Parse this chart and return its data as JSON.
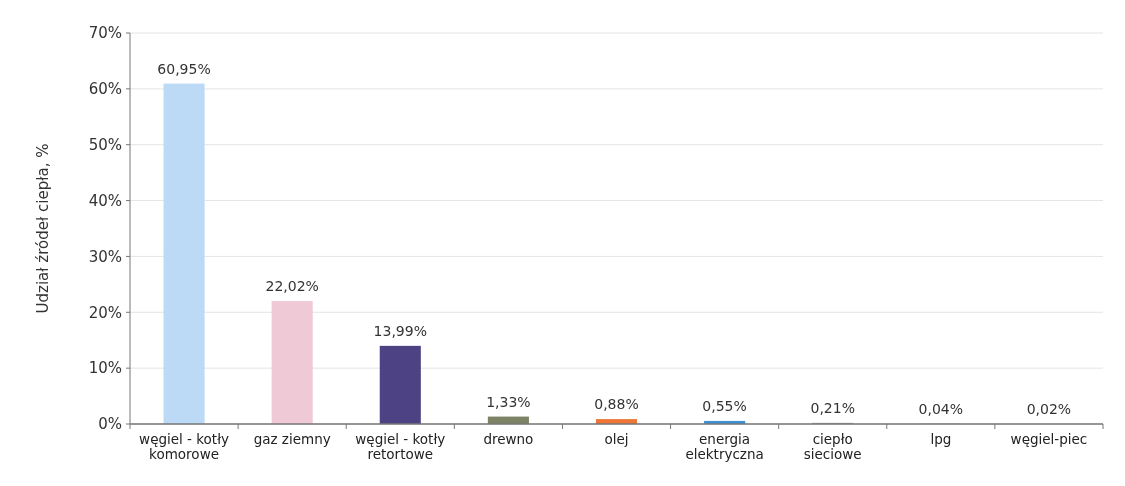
{
  "chart_data": {
    "type": "bar",
    "ylabel": "Udział źródeł ciepła, %",
    "categories": [
      "węgiel - kotły komorowe",
      "gaz ziemny",
      "węgiel - kotły retortowe",
      "drewno",
      "olej",
      "energia elektryczna",
      "ciepło sieciowe",
      "lpg",
      "węgiel-piec"
    ],
    "values": [
      60.95,
      22.02,
      13.99,
      1.33,
      0.88,
      0.55,
      0.21,
      0.04,
      0.02
    ],
    "colors": [
      "#bcdaf6",
      "#f0c9d6",
      "#4d4283",
      "#7d8466",
      "#ee7536",
      "#3d8fd6",
      "#a0a0a8",
      "#a0a0a8",
      "#a0a0a8"
    ],
    "value_labels": [
      "60,95%",
      "22,02%",
      "13,99%",
      "1,33%",
      "0,88%",
      "0,55%",
      "0,21%",
      "0,04%",
      "0,02%"
    ],
    "ylim": [
      0,
      70
    ],
    "yticks": [
      {
        "value": 0,
        "label": "0%"
      },
      {
        "value": 10,
        "label": "10%"
      },
      {
        "value": 20,
        "label": "20%"
      },
      {
        "value": 30,
        "label": "30%"
      },
      {
        "value": 40,
        "label": "40%"
      },
      {
        "value": 50,
        "label": "50%"
      },
      {
        "value": 60,
        "label": "60%"
      },
      {
        "value": 70,
        "label": "70%"
      }
    ],
    "grid": "y"
  }
}
